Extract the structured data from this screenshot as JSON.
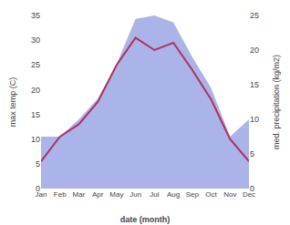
{
  "chart_data": {
    "type": "line",
    "xlabel": "date (month)",
    "ylabel": "max temp (C)",
    "y2label": "med. precipitation (kg/m2)",
    "categories": [
      "Jan",
      "Feb",
      "Mar",
      "Apr",
      "May",
      "Jun",
      "Jul",
      "Aug",
      "Sep",
      "Oct",
      "Nov",
      "Dec"
    ],
    "series": [
      {
        "type": "area",
        "axis": "y2",
        "color": "#aab4e8",
        "values": [
          7.5,
          7.5,
          10.0,
          13.0,
          18.0,
          24.5,
          25.0,
          24.0,
          19.0,
          14.5,
          7.5,
          10.0
        ]
      },
      {
        "type": "line",
        "color": "#b03060",
        "values": [
          5.5,
          10.5,
          13.0,
          17.5,
          25.0,
          30.5,
          28.0,
          29.5,
          24.0,
          18.0,
          10.0,
          5.5
        ]
      }
    ],
    "ylim": [
      0,
      35
    ],
    "yticks": [
      0,
      5,
      10,
      15,
      20,
      25,
      30,
      35
    ],
    "y2lim": [
      0,
      25
    ],
    "y2ticks": [
      0,
      5,
      10,
      15,
      20,
      25
    ],
    "grid": false
  }
}
